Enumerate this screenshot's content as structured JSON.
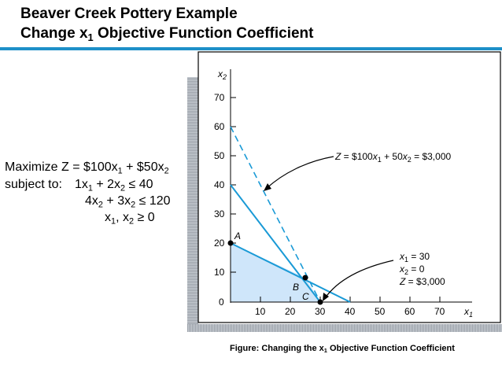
{
  "header": {
    "line1": "Beaver Creek Pottery Example",
    "line2_pre": "Change x",
    "line2_sub": "1",
    "line2_post": " Objective Function Coefficient"
  },
  "model": {
    "obj_a": "Maximize Z = $100x",
    "obj_a_sub": "1",
    "obj_b": " + $50x",
    "obj_b_sub": "2",
    "st_label": "subject to:",
    "c1_a": "1x",
    "c1_a_sub": "1",
    "c1_b": " + 2x",
    "c1_b_sub": "2",
    "c1_c": " ≤ 40",
    "c2_a": "4x",
    "c2_a_sub": "2",
    "c2_b": " + 3x",
    "c2_b_sub": "2",
    "c2_c": " ≤ 120",
    "c3_a": "x",
    "c3_a_sub": "1",
    "c3_b": ", x",
    "c3_b_sub": "2",
    "c3_c": " ≥ 0"
  },
  "graph": {
    "x_axis_label": "x",
    "x_axis_label_sub": "1",
    "y_axis_label": "x",
    "y_axis_label_sub": "2",
    "x_ticks": [
      "10",
      "20",
      "30",
      "40",
      "50",
      "60",
      "70"
    ],
    "y_ticks": [
      "0",
      "10",
      "20",
      "30",
      "40",
      "50",
      "60",
      "70"
    ],
    "point_a": "A",
    "point_b": "B",
    "point_c": "C",
    "obj_label": "Z = $100x1 + 50x2 = $3,000",
    "sol_x1": "x1 = 30",
    "sol_x2": "x2 = 0",
    "sol_z": "Z  = $3,000",
    "feasible_fill": "#cfe6fa",
    "line_color": "#1a9ad6"
  },
  "caption": {
    "pre": "Figure:  Changing the x",
    "sub": "1",
    "post": " Objective Function Coefficient"
  }
}
